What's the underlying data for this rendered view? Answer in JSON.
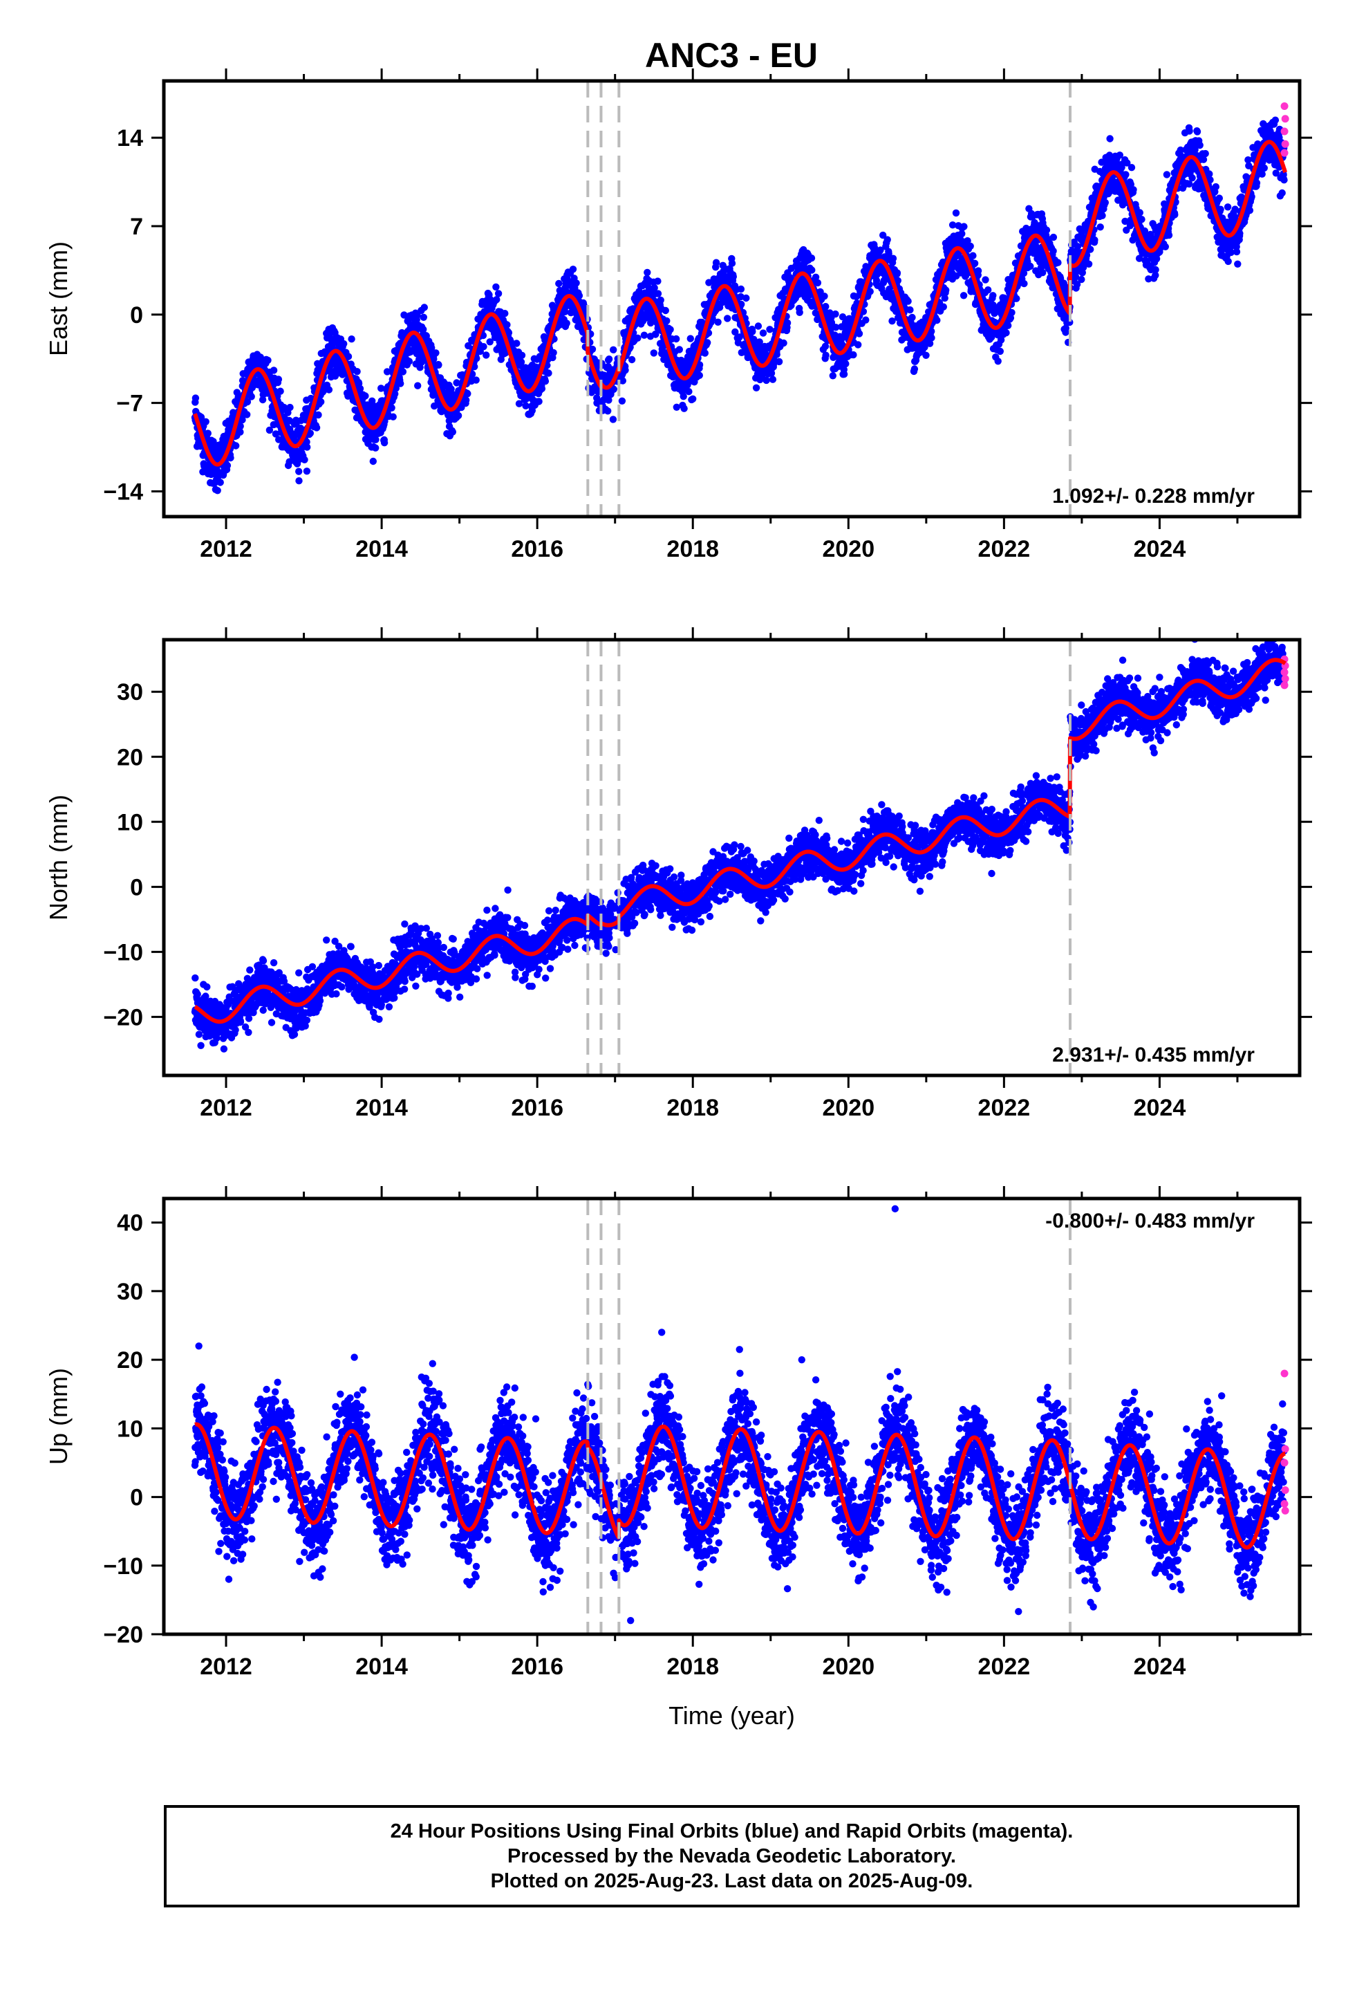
{
  "title": "ANC3 - EU",
  "colors": {
    "final": "#0000ff",
    "rapid": "#ff33cc",
    "model": "#ff0000",
    "breaks": "#bbbbbb"
  },
  "chart_data": [
    {
      "type": "scatter",
      "name": "East",
      "ylabel": "East (mm)",
      "xlim": [
        2011.2,
        2025.8
      ],
      "ylim": [
        -16,
        18.5
      ],
      "xticks": [
        2012,
        2014,
        2016,
        2018,
        2020,
        2022,
        2024
      ],
      "yticks": [
        -14,
        -7,
        0,
        7,
        14
      ],
      "rate_label": "1.092+/- 0.228 mm/yr",
      "rate_position": "bottom-right",
      "breaks": [
        2016.65,
        2016.82,
        2017.05,
        2022.85
      ],
      "segments": [
        {
          "from": 2011.6,
          "to": 2016.65,
          "offset": -8.9,
          "trend": 1.45,
          "amp": 3.4,
          "phase_peak": 0.4
        },
        {
          "from": 2016.65,
          "to": 2016.82,
          "offset": -3.0,
          "trend": 1.45,
          "amp": 3.4,
          "phase_peak": 0.4
        },
        {
          "from": 2016.82,
          "to": 2017.05,
          "offset": -2.5,
          "trend": 1.45,
          "amp": 3.4,
          "phase_peak": 0.4
        },
        {
          "from": 2017.05,
          "to": 2022.85,
          "offset": -2.5,
          "trend": 1.0,
          "amp": 3.4,
          "phase_peak": 0.4
        },
        {
          "from": 2022.85,
          "to": 2025.62,
          "offset": 7.2,
          "trend": 1.2,
          "amp": 3.4,
          "phase_peak": 0.4
        }
      ],
      "scatter_sd": 1.0,
      "rapid_values": [
        16.5,
        15.5,
        14.5,
        13.5,
        12.8
      ]
    },
    {
      "type": "scatter",
      "name": "North",
      "ylabel": "North (mm)",
      "xlim": [
        2011.2,
        2025.8
      ],
      "ylim": [
        -29,
        38
      ],
      "xticks": [
        2012,
        2014,
        2016,
        2018,
        2020,
        2022,
        2024
      ],
      "yticks": [
        -20,
        -10,
        0,
        10,
        20,
        30
      ],
      "rate_label": "2.931+/- 0.435 mm/yr",
      "rate_position": "bottom-right",
      "breaks": [
        2016.65,
        2016.82,
        2017.05,
        2022.85
      ],
      "segments": [
        {
          "from": 2011.6,
          "to": 2016.65,
          "offset": -19.6,
          "trend": 2.6,
          "amp": 2.0,
          "phase_peak": 0.45
        },
        {
          "from": 2016.65,
          "to": 2016.82,
          "offset": -5.0,
          "trend": 2.6,
          "amp": 2.0,
          "phase_peak": 0.45
        },
        {
          "from": 2016.82,
          "to": 2017.05,
          "offset": -4.2,
          "trend": 2.6,
          "amp": 2.0,
          "phase_peak": 0.45
        },
        {
          "from": 2017.05,
          "to": 2022.85,
          "offset": -3.0,
          "trend": 2.65,
          "amp": 2.0,
          "phase_peak": 0.45
        },
        {
          "from": 2022.85,
          "to": 2025.62,
          "offset": 24.5,
          "trend": 3.2,
          "amp": 2.0,
          "phase_peak": 0.45
        }
      ],
      "scatter_sd": 1.8,
      "rapid_values": [
        35,
        34,
        33,
        32,
        31
      ]
    },
    {
      "type": "scatter",
      "name": "Up",
      "ylabel": "Up (mm)",
      "xlabel": "Time (year)",
      "xlim": [
        2011.2,
        2025.8
      ],
      "ylim": [
        -20,
        43.5
      ],
      "xticks": [
        2012,
        2014,
        2016,
        2018,
        2020,
        2022,
        2024
      ],
      "yticks": [
        -20,
        -10,
        0,
        10,
        20,
        30,
        40
      ],
      "rate_label": "-0.800+/- 0.483 mm/yr",
      "rate_position": "top-right",
      "breaks": [
        2016.65,
        2016.82,
        2017.05,
        2022.85
      ],
      "segments": [
        {
          "from": 2011.6,
          "to": 2016.65,
          "offset": 3.8,
          "trend": -0.5,
          "amp": 6.8,
          "phase_peak": 0.62
        },
        {
          "from": 2016.65,
          "to": 2016.82,
          "offset": 0.5,
          "trend": -0.5,
          "amp": 6.8,
          "phase_peak": 0.62
        },
        {
          "from": 2016.82,
          "to": 2017.05,
          "offset": 0.3,
          "trend": -0.5,
          "amp": 6.8,
          "phase_peak": 0.62
        },
        {
          "from": 2017.05,
          "to": 2022.85,
          "offset": 3.2,
          "trend": -0.4,
          "amp": 7.3,
          "phase_peak": 0.62
        },
        {
          "from": 2022.85,
          "to": 2025.62,
          "offset": 1.0,
          "trend": -0.6,
          "amp": 7.0,
          "phase_peak": 0.62
        }
      ],
      "scatter_sd": 3.3,
      "outliers": [
        [
          2011.65,
          22
        ],
        [
          2017.6,
          24
        ],
        [
          2020.6,
          42
        ],
        [
          2018.6,
          21.5
        ],
        [
          2019.4,
          20
        ],
        [
          2017.2,
          -18
        ]
      ],
      "rapid_values": [
        18,
        7,
        5,
        1,
        -1,
        -2
      ]
    }
  ],
  "footer": {
    "line1": "24 Hour Positions Using Final Orbits (blue) and Rapid Orbits (magenta).",
    "line2": "Processed by the Nevada Geodetic Laboratory.",
    "line3": "Plotted on 2025-Aug-23. Last data on 2025-Aug-09."
  }
}
